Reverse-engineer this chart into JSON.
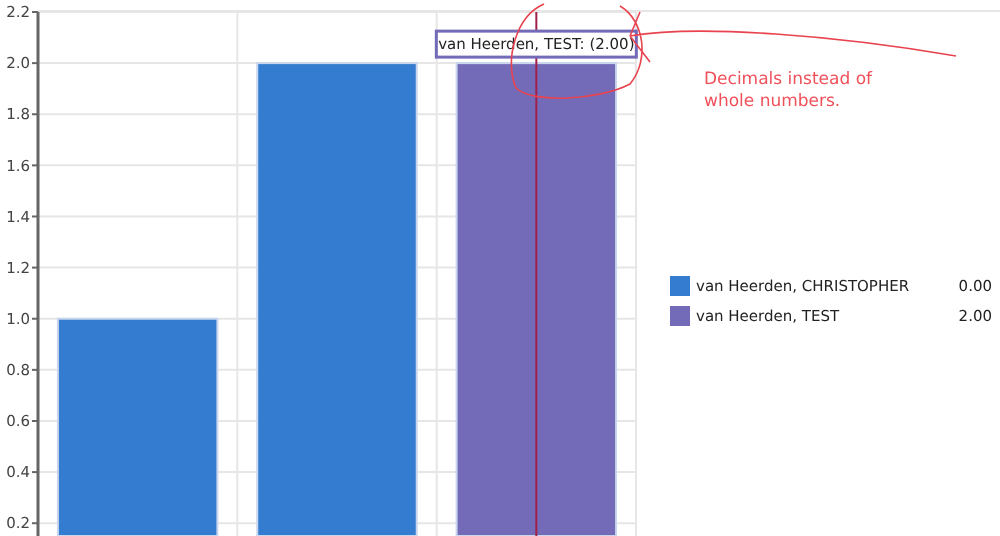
{
  "chart_data": {
    "type": "bar",
    "categories": [
      null,
      null,
      null
    ],
    "series": [
      {
        "name": "van Heerden, CHRISTOPHER",
        "color": "#337cd0",
        "values": [
          1,
          2,
          null
        ]
      },
      {
        "name": "van Heerden, TEST",
        "color": "#736bb8",
        "values": [
          null,
          null,
          2
        ]
      }
    ],
    "ylim": [
      0.15,
      2.2
    ],
    "yticks": [
      {
        "value": 0.2,
        "label": "0.2"
      },
      {
        "value": 0.4,
        "label": "0.4"
      },
      {
        "value": 0.6,
        "label": "0.6"
      },
      {
        "value": 0.8,
        "label": "0.8"
      },
      {
        "value": 1,
        "label": "1.0"
      },
      {
        "value": 1.2,
        "label": "1.2"
      },
      {
        "value": 1.4,
        "label": "1.4"
      },
      {
        "value": 1.6,
        "label": "1.6"
      },
      {
        "value": 1.8,
        "label": "1.8"
      },
      {
        "value": 2,
        "label": "2.0"
      },
      {
        "value": 2.2,
        "label": "2.2"
      }
    ],
    "grid": true,
    "legend": "right",
    "annotations": [
      "0.00",
      "2.00",
      {
        "text": "van Heerden, TEST: (2.00)",
        "y": 2
      },
      "Decimals instead of whole numbers."
    ]
  }
}
